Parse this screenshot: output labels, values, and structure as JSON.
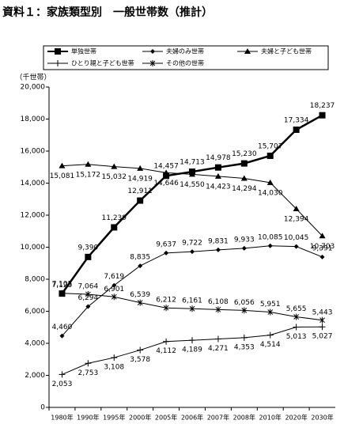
{
  "chart_data": {
    "type": "line",
    "title": "資料１：家族類型別　一般世帯数（推計）",
    "y_label": "（千世帯）",
    "categories": [
      "1980年",
      "1990年",
      "1995年",
      "2000年",
      "2005年",
      "2006年",
      "2007年",
      "2008年",
      "2010年",
      "2020年",
      "2030年"
    ],
    "ylim": [
      0,
      20000
    ],
    "yticks": [
      0,
      {
        "value": 2000,
        "label": "2,000"
      },
      {
        "value": 4000,
        "label": "4,000"
      },
      {
        "value": 6000,
        "label": "6,000"
      },
      {
        "value": 8000,
        "label": "8,000"
      },
      {
        "value": 10000,
        "label": "10,000"
      },
      {
        "value": 12000,
        "label": "12,000"
      },
      {
        "value": 14000,
        "label": "14,000"
      },
      {
        "value": 16000,
        "label": "16,000"
      },
      {
        "value": 18000,
        "label": "18,000"
      },
      {
        "value": 20000,
        "label": "20,000"
      }
    ],
    "grid": false,
    "series": [
      {
        "name": "単独世帯",
        "color": "#000000",
        "marker": "square",
        "values": [
          7105,
          9390,
          11239,
          12911,
          14457,
          14713,
          14978,
          15230,
          15707,
          17334,
          18237
        ],
        "value_labels": [
          "7,105",
          "9,390",
          "11,239",
          "12,911",
          "14,457",
          "14,713",
          "14,978",
          "15,230",
          "15,707",
          "17,334",
          "18,237"
        ]
      },
      {
        "name": "夫婦のみ世帯",
        "color": "#000000",
        "marker": "diamond",
        "values": [
          4460,
          6294,
          7619,
          8835,
          9637,
          9722,
          9831,
          9933,
          10085,
          10045,
          9391
        ],
        "value_labels": [
          "4,460",
          "6,294",
          "7,619",
          "8,835",
          "9,637",
          "9,722",
          "9,831",
          "9,933",
          "10,085",
          "10,045",
          "9,391"
        ]
      },
      {
        "name": "夫婦と子ども世帯",
        "color": "#000000",
        "marker": "triangle",
        "values": [
          15081,
          15172,
          15032,
          14919,
          14646,
          14550,
          14423,
          14294,
          14030,
          12394,
          10703
        ],
        "value_labels": [
          "15,081",
          "15,172",
          "15,032",
          "14,919",
          "14,646",
          "14,550",
          "14,423",
          "14,294",
          "14,030",
          "12,394",
          "10,703"
        ]
      },
      {
        "name": "ひとり親と子ども世帯",
        "color": "#000000",
        "marker": "plus",
        "values": [
          2053,
          2753,
          3108,
          3578,
          4112,
          4189,
          4271,
          4353,
          4514,
          5013,
          5027
        ],
        "value_labels": [
          "2,053",
          "2,753",
          "3,108",
          "3,578",
          "4,112",
          "4,189",
          "4,271",
          "4,353",
          "4,514",
          "5,013",
          "5,027"
        ]
      },
      {
        "name": "その他の世帯",
        "color": "#000000",
        "marker": "star",
        "values": [
          7125,
          7064,
          6901,
          6539,
          6212,
          6161,
          6108,
          6056,
          5951,
          5655,
          5443
        ],
        "value_labels": [
          "7,125",
          "7,064",
          "6,901",
          "6,539",
          "6,212",
          "6,161",
          "6,108",
          "6,056",
          "5,951",
          "5,655",
          "5,443"
        ]
      }
    ]
  }
}
